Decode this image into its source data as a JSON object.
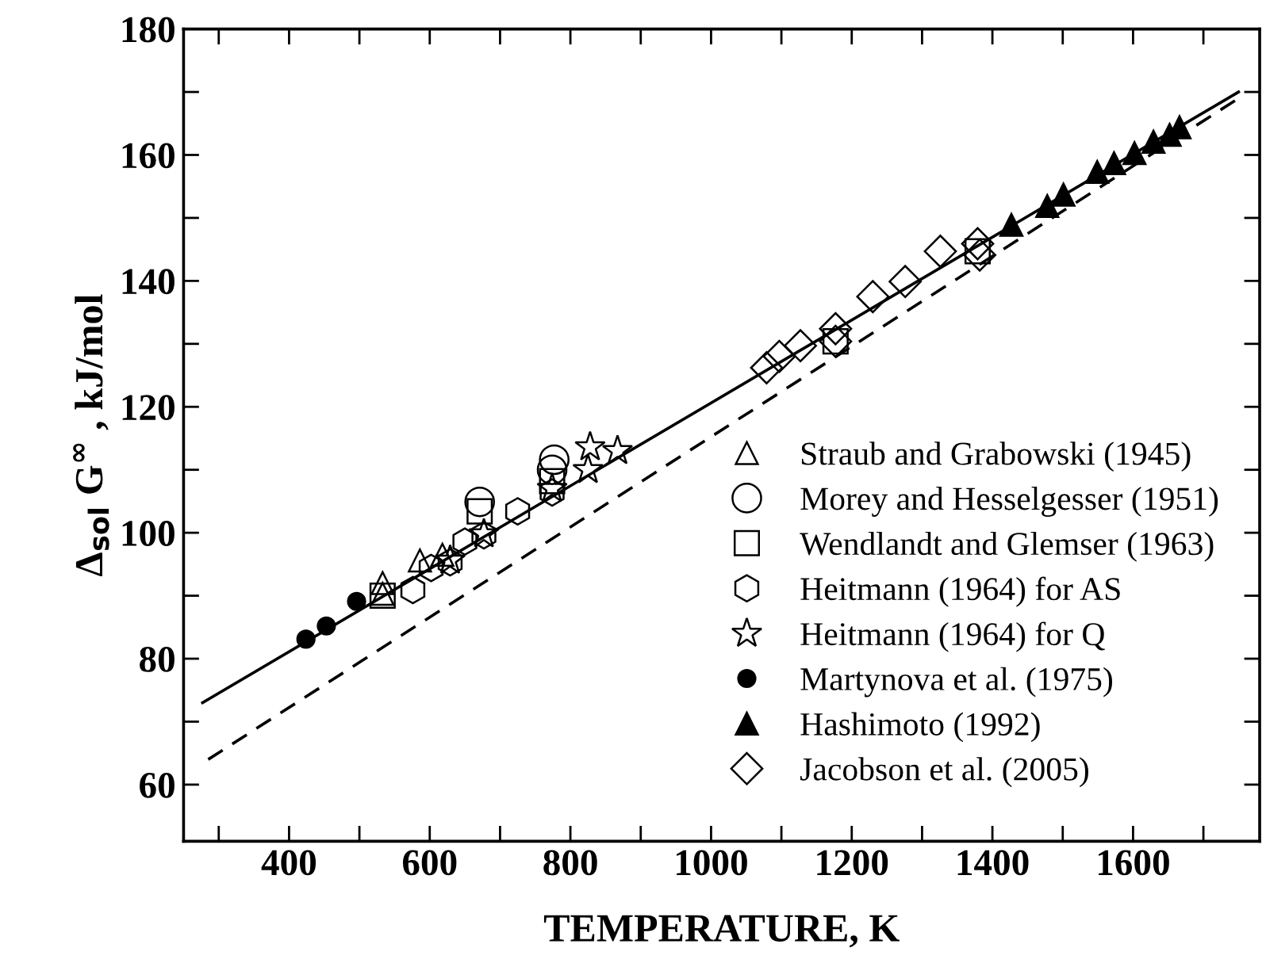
{
  "chart_data": {
    "type": "scatter",
    "xlabel": "TEMPERATURE, K",
    "ylabel": "Δ$_{sol}$ G$^{∞}$ , kJ/mol",
    "xlim": [
      250,
      1780
    ],
    "ylim": [
      51,
      180
    ],
    "xticks": [
      {
        "value": 300,
        "label": null
      },
      400,
      {
        "value": 500,
        "label": null
      },
      600,
      {
        "value": 700,
        "label": null
      },
      800,
      {
        "value": 900,
        "label": null
      },
      1000,
      {
        "value": 1100,
        "label": null
      },
      1200,
      {
        "value": 1300,
        "label": null
      },
      1400,
      {
        "value": 1500,
        "label": null
      },
      1600,
      {
        "value": 1700,
        "label": null
      }
    ],
    "yticks": [
      60,
      {
        "value": 70,
        "label": null
      },
      80,
      {
        "value": 90,
        "label": null
      },
      100,
      {
        "value": 110,
        "label": null
      },
      120,
      {
        "value": 130,
        "label": null
      },
      140,
      {
        "value": 150,
        "label": null
      },
      160,
      {
        "value": 170,
        "label": null
      },
      180
    ],
    "grid": false,
    "legend": "bottom right",
    "series": [
      {
        "name": "Straub and Grabowski (1945)",
        "marker": "triangle",
        "color": "#000000",
        "x": [
          533,
          533,
          586,
          618
        ],
        "values": [
          90.3,
          92,
          95.6,
          96.5
        ]
      },
      {
        "name": "Morey and Hesselgesser (1951)",
        "marker": "circle",
        "color": "#000000",
        "x": [
          671,
          777,
          774
        ],
        "values": [
          104.9,
          111.6,
          110
        ]
      },
      {
        "name": "Wendlandt and Glemser (1963)",
        "marker": "square",
        "color": "#000000",
        "x": [
          533,
          671,
          774,
          1177,
          1379
        ],
        "values": [
          90,
          103.4,
          108.2,
          130.4,
          144.7
        ]
      },
      {
        "name": "Heitmann (1964) for AS",
        "color": "#000000",
        "x": [
          576,
          602,
          629,
          650,
          677,
          725,
          774
        ],
        "values": [
          90.9,
          94.4,
          95.3,
          98.6,
          99.6,
          103.4,
          106.4
        ]
      },
      {
        "name": "Heitmann (1964) for Q",
        "marker": "star",
        "color": "#000000",
        "x": [
          629,
          677,
          774,
          825,
          828,
          867
        ],
        "values": [
          95.6,
          99.8,
          107,
          110,
          113.6,
          113
        ]
      },
      {
        "name": "Martynova et al. (1975)",
        "marker": "circle",
        "color": "#000000",
        "x": [
          424,
          453,
          496
        ],
        "values": [
          83.1,
          85.2,
          89.1
        ]
      },
      {
        "name": "Hashimoto (1992)",
        "marker": "triangle",
        "color": "#000000",
        "x": [
          1427,
          1478,
          1501,
          1549,
          1573,
          1602,
          1629,
          1652,
          1666
        ],
        "values": [
          148.9,
          151.9,
          153.7,
          157.3,
          158.7,
          160.3,
          162.1,
          163.2,
          164.4
        ]
      },
      {
        "name": "Jacobson et al. (2005)",
        "marker": "diamond",
        "color": "#000000",
        "x": [
          1079,
          1097,
          1127,
          1177,
          1177,
          1230,
          1276,
          1326,
          1379,
          1382
        ],
        "values": [
          126.2,
          128,
          129.7,
          132.4,
          130.4,
          137.5,
          139.9,
          144.7,
          145.9,
          144.1
        ]
      },
      {
        "type": "line",
        "line_style": "solid",
        "marker": "none",
        "color": "#000000",
        "x": [
          277,
          1750
        ],
        "values": [
          73,
          170
        ]
      },
      {
        "type": "line",
        "line_style": "dashed",
        "marker": "none",
        "color": "#000000",
        "x": [
          285,
          1750
        ],
        "values": [
          64,
          169
        ]
      }
    ]
  }
}
